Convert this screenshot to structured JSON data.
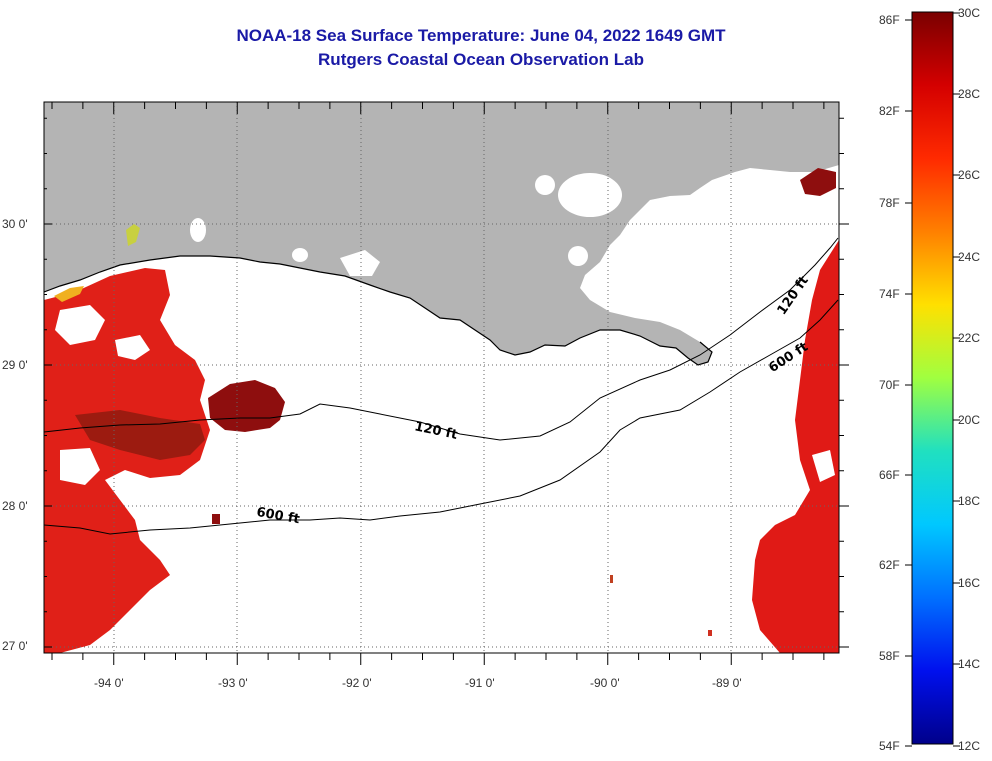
{
  "title": {
    "line1": "NOAA-18 Sea Surface Temperature:  June 04, 2022 1649 GMT",
    "line2": "Rutgers Coastal Ocean Observation Lab"
  },
  "map": {
    "lon_labels": [
      "-94 0'",
      "-93 0'",
      "-92 0'",
      "-91 0'",
      "-90 0'",
      "-89 0'"
    ],
    "lat_labels": [
      "30 0'",
      "29 0'",
      "28 0'",
      "27 0'"
    ],
    "contour_labels": [
      "120 ft",
      "120 ft",
      "600 ft",
      "600 ft"
    ],
    "colors": {
      "land": "#b4b4b4",
      "cloud": "#ffffff",
      "warm_sst": "#e31a1c",
      "hot_sst": "#8b0a0a"
    }
  },
  "colorbar": {
    "f_labels": [
      "86F",
      "82F",
      "78F",
      "74F",
      "70F",
      "66F",
      "62F",
      "58F",
      "54F"
    ],
    "c_labels": [
      "30C",
      "28C",
      "26C",
      "24C",
      "22C",
      "20C",
      "18C",
      "16C",
      "14C",
      "12C"
    ]
  }
}
